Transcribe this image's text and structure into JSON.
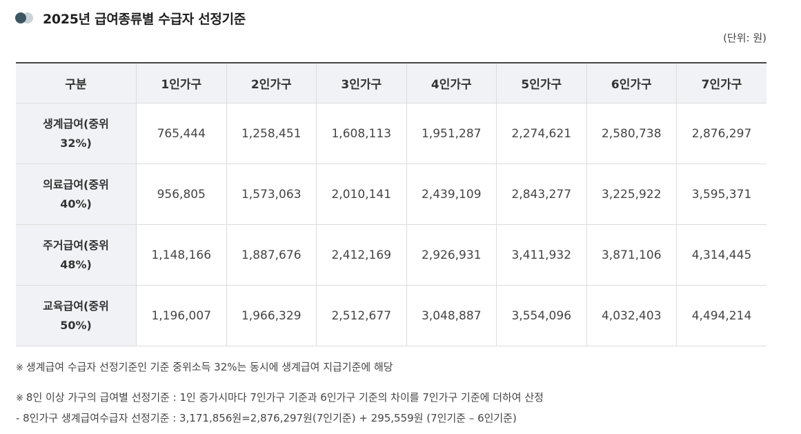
{
  "title": "2025년 급여종류별 수급자 선정기준",
  "unit": "(단위: 원)",
  "table": {
    "corner": "구분",
    "columns": [
      "1인가구",
      "2인가구",
      "3인가구",
      "4인가구",
      "5인가구",
      "6인가구",
      "7인가구"
    ],
    "rows": [
      {
        "label_line1": "생계급여(중위",
        "label_line2": "32%)",
        "values": [
          "765,444",
          "1,258,451",
          "1,608,113",
          "1,951,287",
          "2,274,621",
          "2,580,738",
          "2,876,297"
        ]
      },
      {
        "label_line1": "의료급여(중위",
        "label_line2": "40%)",
        "values": [
          "956,805",
          "1,573,063",
          "2,010,141",
          "2,439,109",
          "2,843,277",
          "3,225,922",
          "3,595,371"
        ]
      },
      {
        "label_line1": "주거급여(중위",
        "label_line2": "48%)",
        "values": [
          "1,148,166",
          "1,887,676",
          "2,412,169",
          "2,926,931",
          "3,411,932",
          "3,871,106",
          "4,314,445"
        ]
      },
      {
        "label_line1": "교육급여(중위",
        "label_line2": "50%)",
        "values": [
          "1,196,007",
          "1,966,329",
          "2,512,677",
          "3,048,887",
          "3,554,096",
          "4,032,403",
          "4,494,214"
        ]
      }
    ]
  },
  "notes": {
    "mark": "※",
    "note1": "생계급여 수급자 선정기준인 기준 중위소득 32%는 동시에 생계급여 지급기준에 해당",
    "note2": "8인 이상 가구의 급여별 선정기준 : 1인 증가시마다 7인가구 기준과 6인가구 기준의 차이를 7인가구 기준에 더하여 산정",
    "note3": "- 8인가구 생계급여수급자 선정기준 : 3,171,856원=2,876,297원(7인기준) + 295,559원 (7인기준 – 6인기준)"
  },
  "colors": {
    "accent_dark": "#3d5563",
    "accent_light": "#c9d3da",
    "header_bg": "#f1f2f6"
  }
}
